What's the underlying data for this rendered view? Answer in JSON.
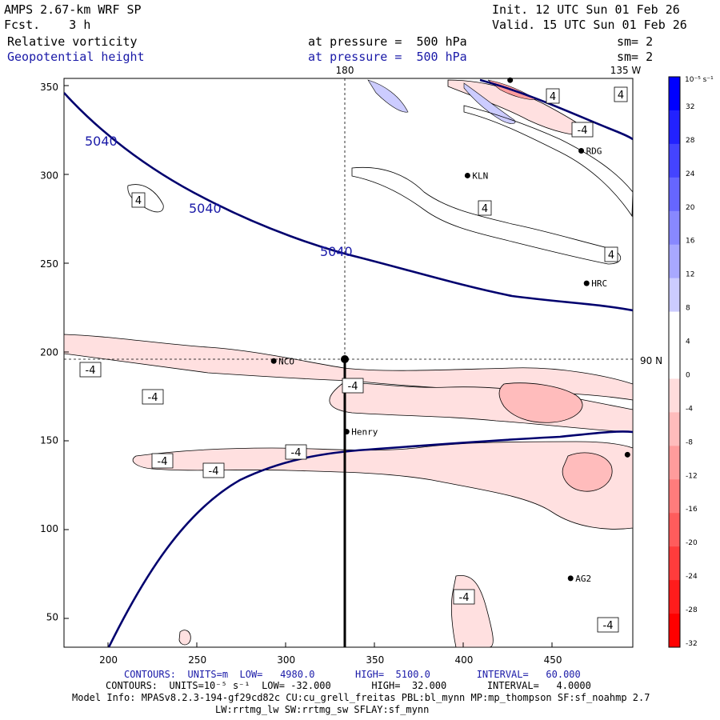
{
  "header": {
    "model": "AMPS 2.67-km WRF SP",
    "fcst": "Fcst.    3 h",
    "init": "Init. 12 UTC Sun 01 Feb 26",
    "valid": "Valid. 15 UTC Sun 01 Feb 26",
    "field1": "Relative vorticity",
    "field2": "Geopotential height",
    "level1": "at pressure =  500 hPa",
    "level2": "at pressure =  500 hPa",
    "sm1": "sm= 2",
    "sm2": "sm= 2"
  },
  "map": {
    "lon_top_label": "180",
    "lon_top_right_label": "135 W",
    "lat_right_label": "90 N",
    "x_ticks": [
      "200",
      "250",
      "300",
      "350",
      "400",
      "450"
    ],
    "y_ticks": [
      "350",
      "300",
      "250",
      "200",
      "150",
      "100",
      "50"
    ],
    "x_range": [
      175,
      495
    ],
    "y_range": [
      33,
      355
    ],
    "stations": [
      {
        "name": "NCO",
        "x": 293,
        "y": 195
      },
      {
        "name": "KLN",
        "x": 402,
        "y": 300
      },
      {
        "name": "RDG",
        "x": 466,
        "y": 314
      },
      {
        "name": "HRC",
        "x": 469,
        "y": 239
      },
      {
        "name": "Henry",
        "x": 334,
        "y": 155
      },
      {
        "name": "AG2",
        "x": 460,
        "y": 72
      },
      {
        "name": "",
        "x": 492,
        "y": 142
      },
      {
        "name": "",
        "x": 426,
        "y": 354
      }
    ],
    "height_labels": [
      "5040",
      "5040",
      "5040"
    ],
    "vort_labels": [
      "4",
      "4",
      "4",
      "4",
      "4",
      "-4",
      "-4",
      "-4",
      "-4",
      "-4",
      "-4",
      "-4",
      "-4",
      "-4"
    ]
  },
  "colorbar": {
    "units": "10⁻⁵ s⁻¹",
    "labels": [
      "32",
      "28",
      "24",
      "20",
      "16",
      "12",
      "8",
      "4",
      "0",
      "-4",
      "-8",
      "-12",
      "-16",
      "-20",
      "-24",
      "-28",
      "-32"
    ],
    "colors": [
      "#0000ff",
      "#2222ff",
      "#4444ff",
      "#6666ff",
      "#8888ff",
      "#a8a8ff",
      "#ccccff",
      "#ffffff",
      "#ffffff",
      "#ffdcdc",
      "#ffbcbc",
      "#ff9c9c",
      "#ff7c7c",
      "#ff5c5c",
      "#ff3c3c",
      "#ff1c1c",
      "#ff0000"
    ]
  },
  "footer": {
    "line1": "CONTOURS:  UNITS=m  LOW=   4980.0       HIGH=  5100.0        INTERVAL=   60.000",
    "line2": "CONTOURS:  UNITS=10⁻⁵ s⁻¹  LOW= -32.000       HIGH=  32.000       INTERVAL=   4.0000",
    "line3": "Model Info: MPASv8.2.3-194-gf29cd82c CU:cu_grell_freitas PBL:bl_mynn MP:mp_thompson SF:sf_noahmp 2.7",
    "line4": "LW:rrtmg_lw SW:rrtmg_sw SFLAY:sf_mynn"
  }
}
